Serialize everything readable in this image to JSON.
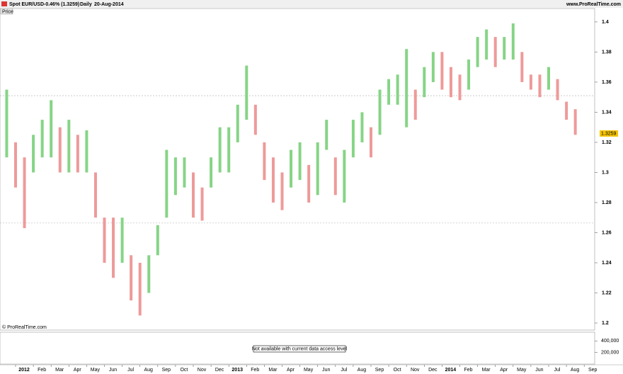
{
  "header": {
    "symbol": "Spot EUR/USD",
    "change": "-0.46% (1.3259)",
    "period": "Daily",
    "date": "20-Aug-2014",
    "site": "www.ProRealTime.com",
    "tab": "Price",
    "copyright": "© ProRealTime.com"
  },
  "chart_data": {
    "type": "ohlc",
    "categories": [
      null,
      "2012",
      null,
      "Feb",
      null,
      "Mar",
      null,
      "Apr",
      null,
      "May",
      null,
      "Jun",
      null,
      "Jul",
      null,
      "Aug",
      null,
      "Sep",
      null,
      "Oct",
      null,
      "Nov",
      null,
      "Dec",
      null,
      "2013",
      null,
      "Feb",
      null,
      "Mar",
      null,
      "Apr",
      null,
      "May",
      null,
      "Jun",
      null,
      "Jul",
      null,
      "Aug",
      null,
      "Sep",
      null,
      "Oct",
      null,
      "Nov",
      null,
      "Dec",
      null,
      "2014",
      null,
      "Feb",
      null,
      "Mar",
      null,
      "Apr",
      null,
      "May",
      null,
      "Jun",
      null,
      "Jul",
      null,
      "Aug",
      null,
      "Sep"
    ],
    "high": [
      1.355,
      1.32,
      1.31,
      1.325,
      1.335,
      1.348,
      1.33,
      1.335,
      1.325,
      1.328,
      1.3,
      1.27,
      1.27,
      1.27,
      1.245,
      1.24,
      1.245,
      1.265,
      1.315,
      1.31,
      1.31,
      1.3,
      1.29,
      1.31,
      1.33,
      1.33,
      1.345,
      1.371,
      1.345,
      1.32,
      1.31,
      1.3,
      1.315,
      1.32,
      1.305,
      1.32,
      1.335,
      1.31,
      1.315,
      1.335,
      1.34,
      1.33,
      1.355,
      1.362,
      1.365,
      1.382,
      1.355,
      1.37,
      1.38,
      1.38,
      1.37,
      1.365,
      1.375,
      1.39,
      1.395,
      1.39,
      1.39,
      1.399,
      1.38,
      1.365,
      1.365,
      1.37,
      1.362,
      1.347,
      1.342,
      null
    ],
    "low": [
      1.31,
      1.29,
      1.263,
      1.3,
      1.31,
      1.31,
      1.3,
      1.3,
      1.3,
      1.3,
      1.27,
      1.24,
      1.23,
      1.24,
      1.215,
      1.205,
      1.22,
      1.245,
      1.27,
      1.285,
      1.29,
      1.27,
      1.268,
      1.29,
      1.3,
      1.3,
      1.32,
      1.335,
      1.325,
      1.295,
      1.28,
      1.275,
      1.29,
      1.295,
      1.28,
      1.285,
      1.315,
      1.285,
      1.28,
      1.31,
      1.32,
      1.31,
      1.325,
      1.345,
      1.345,
      1.33,
      1.335,
      1.35,
      1.36,
      1.355,
      1.35,
      1.348,
      1.355,
      1.37,
      1.375,
      1.37,
      1.375,
      1.375,
      1.36,
      1.355,
      1.35,
      1.355,
      1.348,
      1.335,
      1.325,
      null
    ],
    "up_color": "#86d486",
    "down_color": "#ee9a9a",
    "ylim": [
      1.1953,
      1.4089
    ],
    "yticks": [
      1.2,
      1.22,
      1.24,
      1.26,
      1.28,
      1.3,
      1.32,
      1.34,
      1.36,
      1.38,
      1.4
    ],
    "reference_lines": [
      1.351,
      1.2664
    ],
    "last_value": 1.3259
  },
  "volume": {
    "message": "Not available with current data access level",
    "ylim": [
      0,
      550000
    ],
    "yticks": [
      {
        "value": 400000,
        "label": "400,000"
      },
      {
        "value": 200000,
        "label": "200,000"
      }
    ]
  }
}
